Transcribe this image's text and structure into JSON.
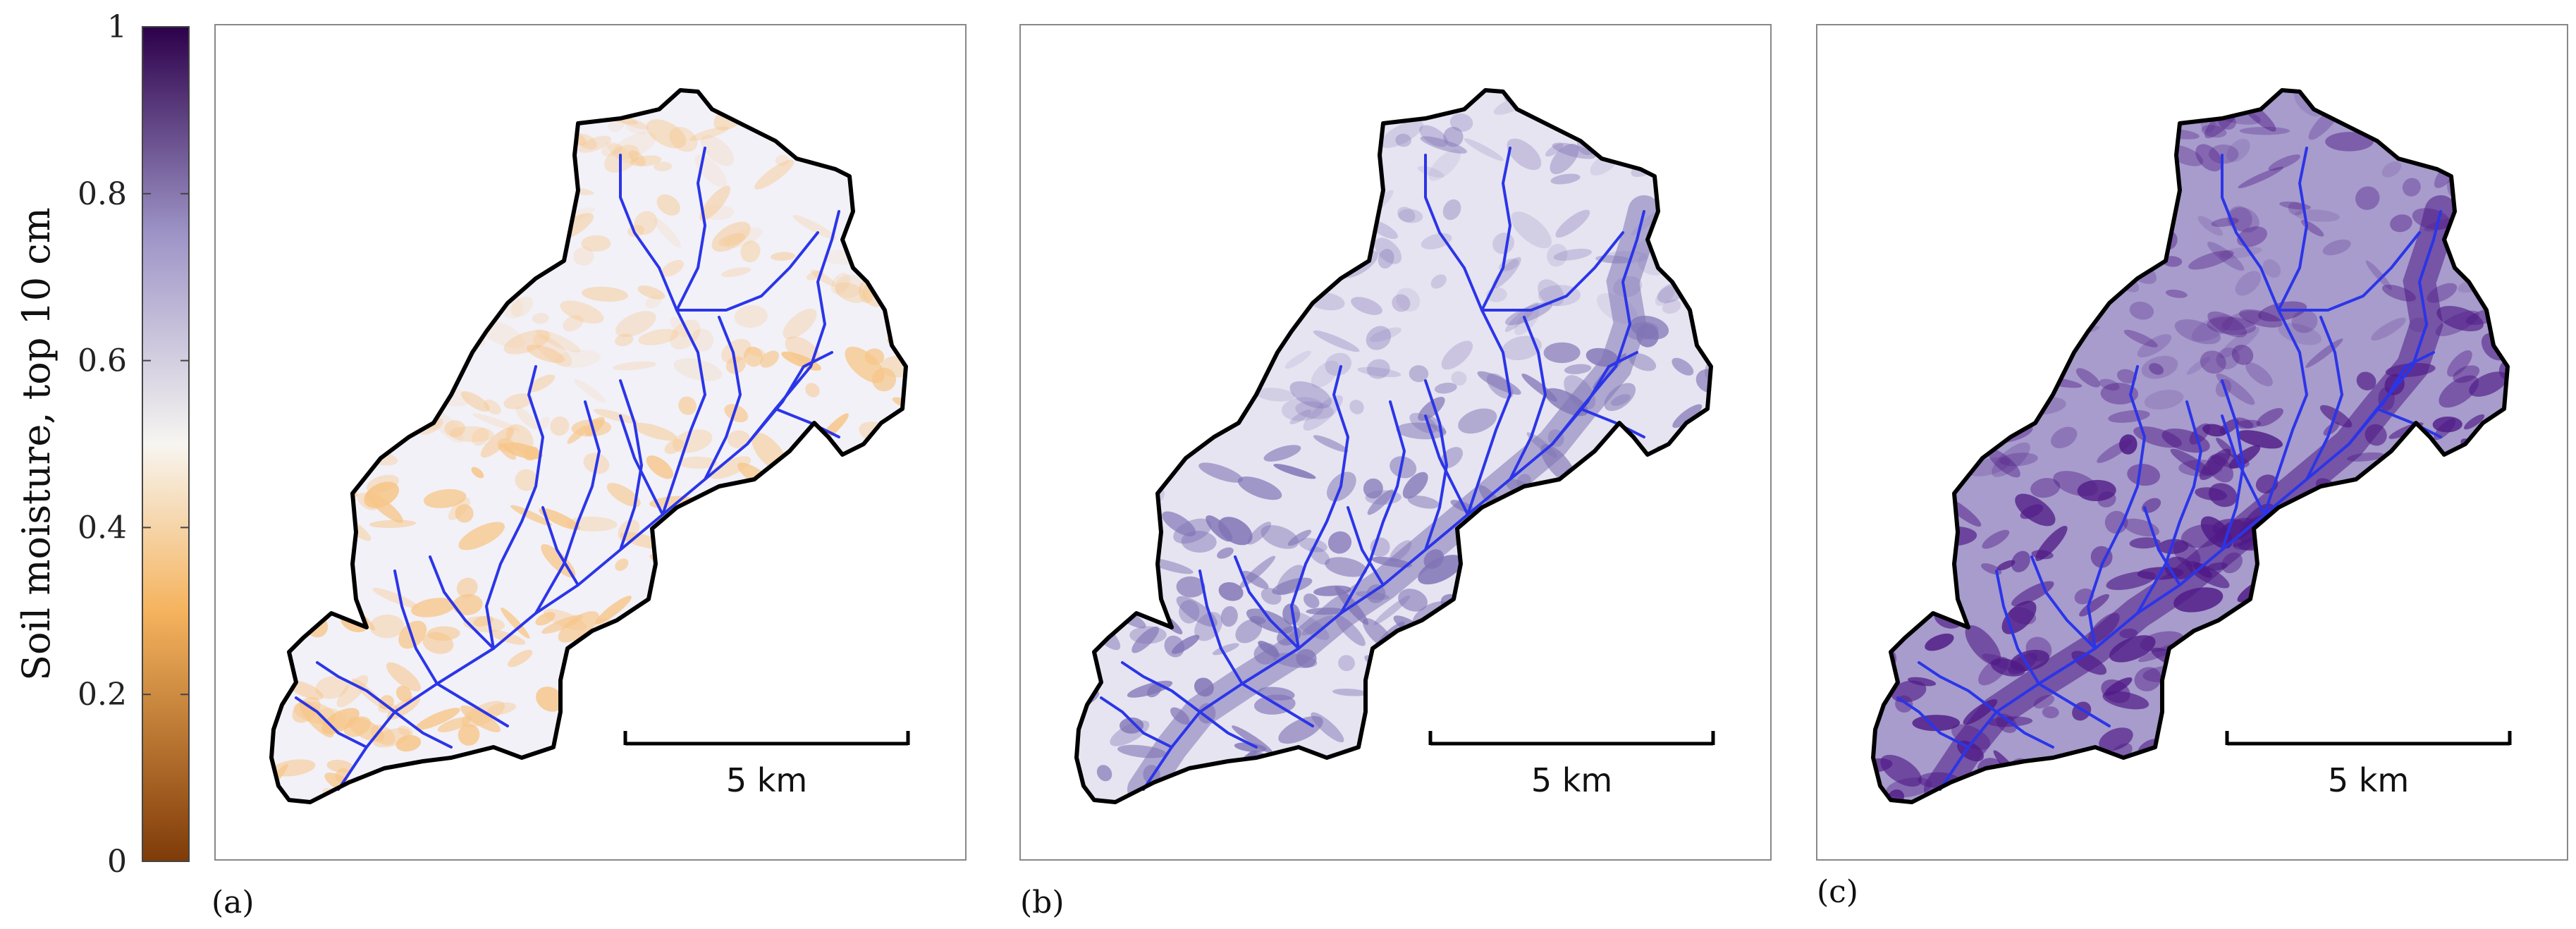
{
  "colorbar": {
    "title": "Soil moisture, top 10 cm",
    "ticks": [
      "1",
      "0.8",
      "0.6",
      "0.4",
      "0.2",
      "0"
    ],
    "range": [
      0,
      1
    ],
    "colors": {
      "low": "#7f3b08",
      "mid_low": "#f5b35e",
      "mid": "#f7f5f1",
      "mid_high": "#9e95c7",
      "high": "#2d004b"
    }
  },
  "panels": [
    {
      "label": "(a)",
      "scale_label": "5 km",
      "fill_color": "#f2f1f8",
      "detail_color": "#f7c587"
    },
    {
      "label": "(b)",
      "scale_label": "5 km",
      "fill_color": "#e6e4f1",
      "detail_color": "#8074b5"
    },
    {
      "label": "(c)",
      "scale_label": "5 km",
      "fill_color": "#a79ccc",
      "detail_color": "#4f1a86"
    }
  ],
  "colors": {
    "river": "#2b35e8",
    "outline": "#000000",
    "frame": "#888888"
  }
}
